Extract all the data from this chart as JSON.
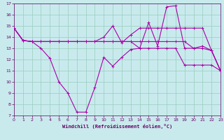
{
  "xlabel": "Windchill (Refroidissement éolien,°C)",
  "xlim": [
    0,
    23
  ],
  "ylim": [
    7,
    17
  ],
  "xticks": [
    0,
    1,
    2,
    3,
    4,
    5,
    6,
    7,
    8,
    9,
    10,
    11,
    12,
    13,
    14,
    15,
    16,
    17,
    18,
    19,
    20,
    21,
    22,
    23
  ],
  "yticks": [
    7,
    8,
    9,
    10,
    11,
    12,
    13,
    14,
    15,
    16,
    17
  ],
  "bg_color": "#c8eaed",
  "line_color": "#aa00aa",
  "grid_color": "#99ccbb",
  "lines": [
    [
      14.8,
      13.7,
      13.6,
      13.0,
      12.1,
      10.0,
      9.0,
      7.3,
      7.3,
      9.5,
      12.2,
      11.4,
      12.2,
      12.9,
      13.0,
      15.3,
      13.2,
      16.7,
      16.8,
      13.0,
      13.0,
      13.0,
      12.8,
      11.0
    ],
    [
      14.8,
      13.7,
      13.6,
      13.6,
      13.6,
      13.6,
      13.6,
      13.6,
      13.6,
      13.6,
      14.0,
      15.0,
      13.5,
      14.2,
      14.8,
      14.8,
      14.8,
      14.8,
      14.8,
      14.8,
      14.8,
      14.8,
      12.8,
      11.0
    ],
    [
      14.8,
      13.7,
      13.6,
      13.6,
      13.6,
      13.6,
      13.6,
      13.6,
      13.6,
      13.6,
      13.6,
      13.6,
      13.6,
      13.6,
      13.6,
      13.6,
      13.6,
      13.6,
      13.6,
      13.6,
      13.0,
      13.2,
      12.8,
      11.0
    ],
    [
      14.8,
      13.7,
      13.6,
      13.6,
      13.6,
      13.6,
      13.6,
      13.6,
      13.6,
      13.6,
      13.6,
      13.6,
      13.6,
      13.6,
      13.0,
      13.0,
      13.0,
      13.0,
      13.0,
      11.5,
      11.5,
      11.5,
      11.5,
      11.0
    ]
  ]
}
